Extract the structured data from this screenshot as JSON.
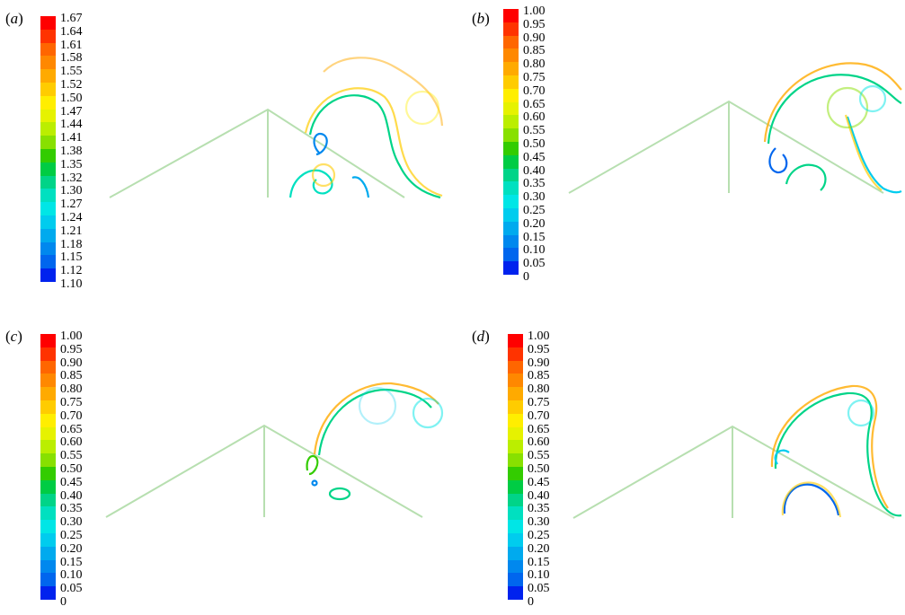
{
  "figure": {
    "panels": [
      {
        "label": "a",
        "colorbar": {
          "ticks": [
            "1.67",
            "1.64",
            "1.61",
            "1.58",
            "1.55",
            "1.52",
            "1.50",
            "1.47",
            "1.44",
            "1.41",
            "1.38",
            "1.35",
            "1.32",
            "1.30",
            "1.27",
            "1.24",
            "1.21",
            "1.18",
            "1.15",
            "1.12",
            "1.10"
          ]
        }
      },
      {
        "label": "b",
        "colorbar": {
          "ticks": [
            "1.00",
            "0.95",
            "0.90",
            "0.85",
            "0.80",
            "0.75",
            "0.70",
            "0.65",
            "0.60",
            "0.55",
            "0.50",
            "0.45",
            "0.40",
            "0.35",
            "0.30",
            "0.25",
            "0.20",
            "0.15",
            "0.10",
            "0.05",
            "0"
          ]
        }
      },
      {
        "label": "c",
        "colorbar": {
          "ticks": [
            "1.00",
            "0.95",
            "0.90",
            "0.85",
            "0.80",
            "0.75",
            "0.70",
            "0.65",
            "0.60",
            "0.55",
            "0.50",
            "0.45",
            "0.40",
            "0.35",
            "0.30",
            "0.25",
            "0.20",
            "0.15",
            "0.10",
            "0.05",
            "0"
          ]
        }
      },
      {
        "label": "d",
        "colorbar": {
          "ticks": [
            "1.00",
            "0.95",
            "0.90",
            "0.85",
            "0.80",
            "0.75",
            "0.70",
            "0.65",
            "0.60",
            "0.55",
            "0.50",
            "0.45",
            "0.40",
            "0.35",
            "0.30",
            "0.25",
            "0.20",
            "0.15",
            "0.10",
            "0.05",
            "0"
          ]
        }
      }
    ],
    "colormap": [
      "#ff0000",
      "#ff3300",
      "#ff6600",
      "#ff8800",
      "#ffaa00",
      "#ffcc00",
      "#ffee00",
      "#e6f200",
      "#bbee00",
      "#88e000",
      "#33cc00",
      "#00cc44",
      "#00d488",
      "#00e0c0",
      "#00e6e6",
      "#00ccee",
      "#00aaee",
      "#0088ee",
      "#0066ee",
      "#0022ee",
      "#0000ff"
    ],
    "structure_color": "#b7dfb0"
  }
}
